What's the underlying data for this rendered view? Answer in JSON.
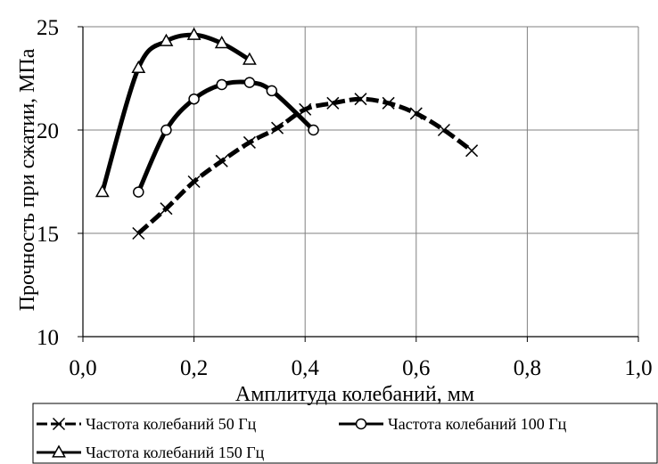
{
  "chart_data": {
    "type": "line",
    "title": "",
    "xlabel": "Амплитуда колебаний, мм",
    "ylabel": "Прочность при сжатии, МПа",
    "xlim": [
      0,
      1
    ],
    "ylim": [
      10,
      25
    ],
    "xticks": [
      "0,0",
      "0,2",
      "0,4",
      "0,6",
      "0,8",
      "1,0"
    ],
    "yticks": [
      "10",
      "15",
      "20",
      "25"
    ],
    "grid": true,
    "legend_position": "bottom",
    "series": [
      {
        "name": "Частота колебаний 50 Гц",
        "marker": "x",
        "line_style": "dashed",
        "x": [
          0.1,
          0.15,
          0.2,
          0.25,
          0.3,
          0.35,
          0.4,
          0.45,
          0.5,
          0.55,
          0.6,
          0.65,
          0.7
        ],
        "y": [
          15.0,
          16.2,
          17.5,
          18.5,
          19.4,
          20.1,
          21.0,
          21.3,
          21.5,
          21.3,
          20.8,
          20.0,
          19.0
        ]
      },
      {
        "name": "Частота колебаний 100 Гц",
        "marker": "circle",
        "line_style": "solid",
        "x": [
          0.1,
          0.15,
          0.2,
          0.25,
          0.3,
          0.34,
          0.415
        ],
        "y": [
          17.0,
          20.0,
          21.5,
          22.2,
          22.3,
          21.9,
          20.0
        ]
      },
      {
        "name": "Частота колебаний 150 Гц",
        "marker": "triangle",
        "line_style": "solid",
        "x": [
          0.035,
          0.1,
          0.15,
          0.2,
          0.25,
          0.3
        ],
        "y": [
          17.0,
          23.0,
          24.3,
          24.6,
          24.2,
          23.4
        ]
      }
    ],
    "colors": {
      "line": "#000000",
      "grid": "#808080",
      "marker_fill": "#ffffff"
    }
  }
}
